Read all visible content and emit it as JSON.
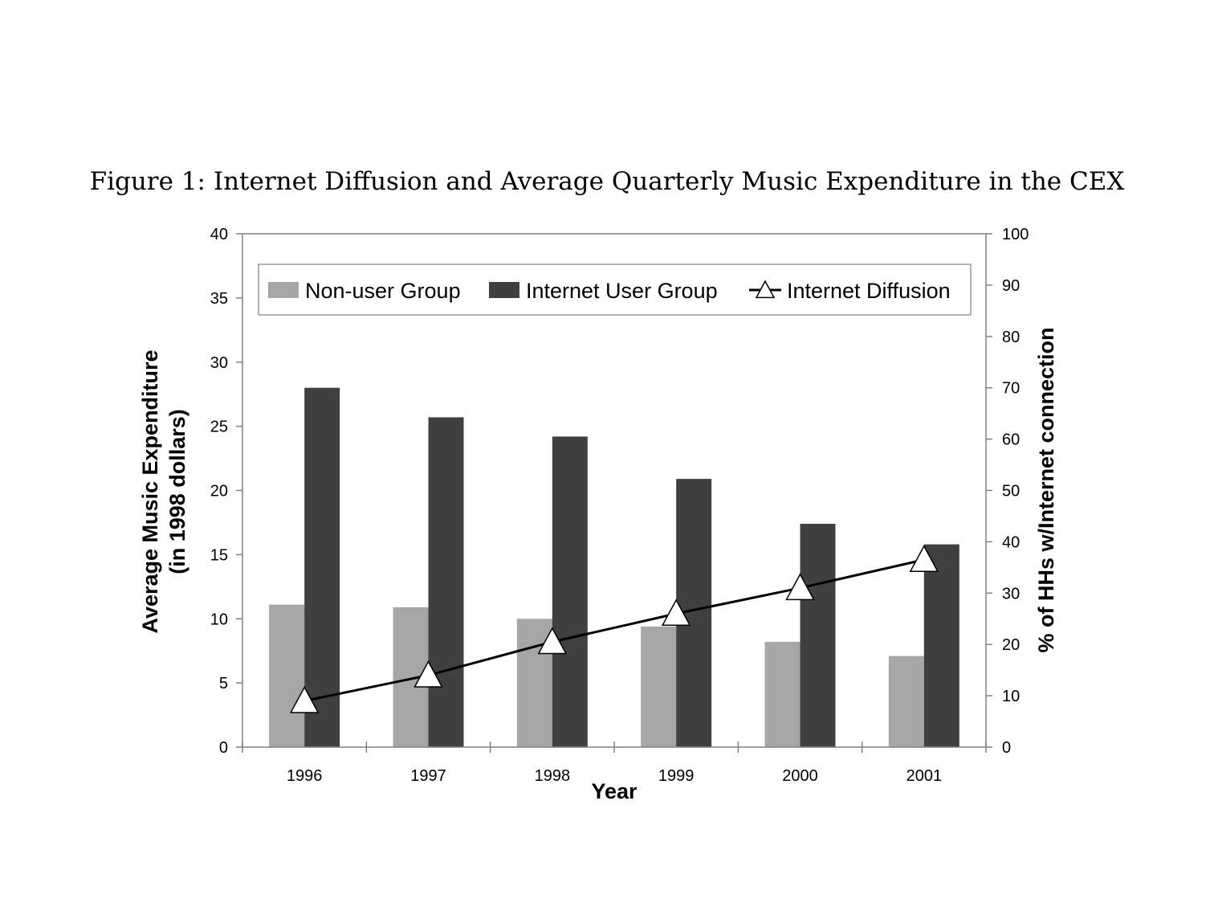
{
  "caption": "Figure 1: Internet Diffusion and Average Quarterly Music Expenditure in the CEX",
  "chart_data": {
    "type": "bar",
    "categories": [
      "1996",
      "1997",
      "1998",
      "1999",
      "2000",
      "2001"
    ],
    "series": [
      {
        "name": "Non-user Group",
        "kind": "bar",
        "axis": "left",
        "color": "#a6a6a6",
        "values": [
          11.1,
          10.9,
          10.0,
          9.4,
          8.2,
          7.1
        ]
      },
      {
        "name": "Internet User Group",
        "kind": "bar",
        "axis": "left",
        "color": "#404040",
        "values": [
          28.0,
          25.7,
          24.2,
          20.9,
          17.4,
          15.8
        ]
      },
      {
        "name": "Internet Diffusion",
        "kind": "line",
        "marker": "triangle",
        "axis": "right",
        "color": "#000000",
        "values": [
          9.0,
          14.0,
          20.5,
          26.0,
          31.0,
          36.5
        ]
      }
    ],
    "xlabel": "Year",
    "ylabel_left": [
      "Average Music Expenditure",
      "(in 1998 dollars)"
    ],
    "ylabel_right": "% of HHs w/Internet connection",
    "ylim_left": [
      0,
      40
    ],
    "yticks_left": [
      "0",
      "5",
      "10",
      "15",
      "20",
      "25",
      "30",
      "35",
      "40"
    ],
    "ylim_right": [
      0,
      100
    ],
    "yticks_right": [
      "0",
      "10",
      "20",
      "30",
      "40",
      "50",
      "60",
      "70",
      "80",
      "90",
      "100"
    ],
    "grid": false,
    "legend_position": "top"
  }
}
